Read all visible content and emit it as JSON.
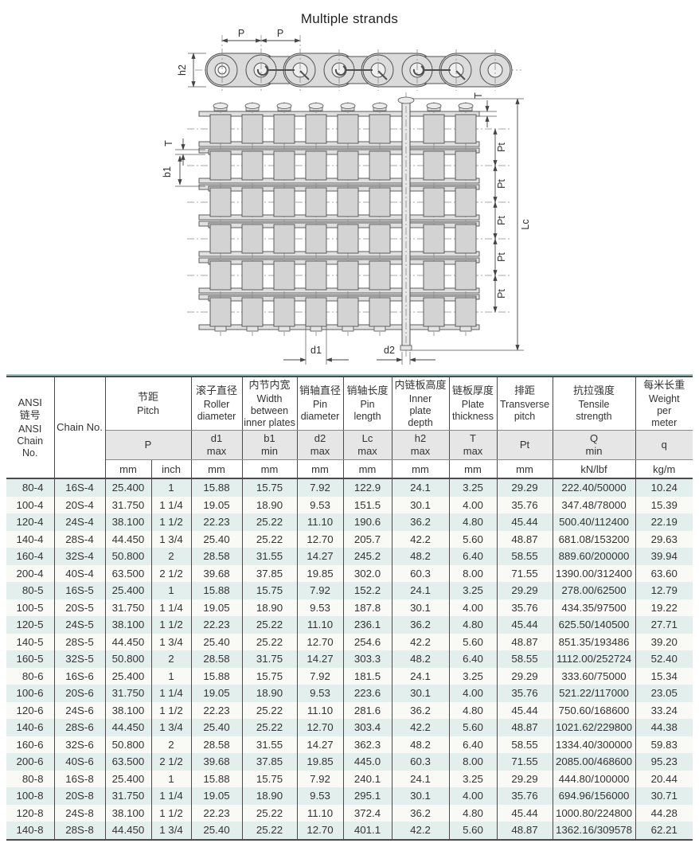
{
  "page": {
    "title": "Multiple strands"
  },
  "colors": {
    "stripe": "#e3efec",
    "accent_line": "#95c4bf"
  },
  "diagram": {
    "labels": {
      "p": "P",
      "h2": "h2",
      "t": "T",
      "b1": "b1",
      "pt": "Pt",
      "lc": "Lc",
      "d1": "d1",
      "d2": "d2"
    }
  },
  "table": {
    "header": {
      "ansi_zh": "ANSI\n链号",
      "ansi_en": "ANSI\nChain\nNo.",
      "chain_no": "Chain No.",
      "pitch_zh": "节距",
      "pitch_en": "Pitch",
      "pitch_sym": "P",
      "roller_zh": "滚子直径",
      "roller_en": "Roller\ndiameter",
      "roller_sym": "d1\nmax",
      "width_zh": "内节内宽",
      "width_en": "Width\nbetween\ninner plates",
      "width_sym": "b1\nmin",
      "pin_d_zh": "销轴直径",
      "pin_d_en": "Pin\ndiameter",
      "pin_d_sym": "d2\nmax",
      "pin_l_zh": "销轴长度",
      "pin_l_en": "Pin\nlength",
      "pin_l_sym": "Lc\nmax",
      "plate_h_zh": "内链板高度",
      "plate_h_en": "Inner\nplate\ndepth",
      "plate_h_sym": "h2\nmax",
      "plate_t_zh": "链板厚度",
      "plate_t_en": "Plate\nthickness",
      "plate_t_sym": "T\nmax",
      "tp_zh": "排距",
      "tp_en": "Transverse\npitch",
      "tp_sym": "Pt",
      "ts_zh": "抗拉强度",
      "ts_en": "Tensile\nstrength",
      "ts_sym": "Q\nmin",
      "w_zh": "每米长重",
      "w_en": "Weight\nper\nmeter",
      "w_sym": "q",
      "units": {
        "mm": "mm",
        "inch": "inch",
        "kn": "kN/lbf",
        "kg": "kg/m"
      }
    },
    "rows": [
      [
        "80-4",
        "16S-4",
        "25.400",
        "1",
        "15.88",
        "15.75",
        "7.92",
        "122.9",
        "24.1",
        "3.25",
        "29.29",
        "222.40/50000",
        "10.24"
      ],
      [
        "100-4",
        "20S-4",
        "31.750",
        "1 1/4",
        "19.05",
        "18.90",
        "9.53",
        "151.5",
        "30.1",
        "4.00",
        "35.76",
        "347.48/78000",
        "15.39"
      ],
      [
        "120-4",
        "24S-4",
        "38.100",
        "1 1/2",
        "22.23",
        "25.22",
        "11.10",
        "190.6",
        "36.2",
        "4.80",
        "45.44",
        "500.40/112400",
        "22.19"
      ],
      [
        "140-4",
        "28S-4",
        "44.450",
        "1 3/4",
        "25.40",
        "25.22",
        "12.70",
        "205.7",
        "42.2",
        "5.60",
        "48.87",
        "681.08/153200",
        "29.63"
      ],
      [
        "160-4",
        "32S-4",
        "50.800",
        "2",
        "28.58",
        "31.55",
        "14.27",
        "245.2",
        "48.2",
        "6.40",
        "58.55",
        "889.60/200000",
        "39.94"
      ],
      [
        "200-4",
        "40S-4",
        "63.500",
        "2 1/2",
        "39.68",
        "37.85",
        "19.85",
        "302.0",
        "60.3",
        "8.00",
        "71.55",
        "1390.00/312400",
        "63.60"
      ],
      [
        "80-5",
        "16S-5",
        "25.400",
        "1",
        "15.88",
        "15.75",
        "7.92",
        "152.2",
        "24.1",
        "3.25",
        "29.29",
        "278.00/62500",
        "12.79"
      ],
      [
        "100-5",
        "20S-5",
        "31.750",
        "1 1/4",
        "19.05",
        "18.90",
        "9.53",
        "187.8",
        "30.1",
        "4.00",
        "35.76",
        "434.35/97500",
        "19.22"
      ],
      [
        "120-5",
        "24S-5",
        "38.100",
        "1 1/2",
        "22.23",
        "25.22",
        "11.10",
        "236.1",
        "36.2",
        "4.80",
        "45.44",
        "625.50/140500",
        "27.71"
      ],
      [
        "140-5",
        "28S-5",
        "44.450",
        "1 3/4",
        "25.40",
        "25.22",
        "12.70",
        "254.6",
        "42.2",
        "5.60",
        "48.87",
        "851.35/193486",
        "39.20"
      ],
      [
        "160-5",
        "32S-5",
        "50.800",
        "2",
        "28.58",
        "31.75",
        "14.27",
        "303.3",
        "48.2",
        "6.40",
        "58.55",
        "1112.00/252724",
        "52.40"
      ],
      [
        "80-6",
        "16S-6",
        "25.400",
        "1",
        "15.88",
        "15.75",
        "7.92",
        "181.5",
        "24.1",
        "3.25",
        "29.29",
        "333.60/75000",
        "15.34"
      ],
      [
        "100-6",
        "20S-6",
        "31.750",
        "1 1/4",
        "19.05",
        "18.90",
        "9.53",
        "223.6",
        "30.1",
        "4.00",
        "35.76",
        "521.22/117000",
        "23.05"
      ],
      [
        "120-6",
        "24S-6",
        "38.100",
        "1 1/2",
        "22.23",
        "25.22",
        "11.10",
        "281.6",
        "36.2",
        "4.80",
        "45.44",
        "750.60/168600",
        "33.24"
      ],
      [
        "140-6",
        "28S-6",
        "44.450",
        "1 3/4",
        "25.40",
        "25.22",
        "12.70",
        "303.4",
        "42.2",
        "5.60",
        "48.87",
        "1021.62/229800",
        "44.38"
      ],
      [
        "160-6",
        "32S-6",
        "50.800",
        "2",
        "28.58",
        "31.55",
        "14.27",
        "362.3",
        "48.2",
        "6.40",
        "58.55",
        "1334.40/300000",
        "59.83"
      ],
      [
        "200-6",
        "40S-6",
        "63.500",
        "2 1/2",
        "39.68",
        "37.85",
        "19.85",
        "445.0",
        "60.3",
        "8.00",
        "71.55",
        "2085.00/468600",
        "95.23"
      ],
      [
        "80-8",
        "16S-8",
        "25.400",
        "1",
        "15.88",
        "15.75",
        "7.92",
        "240.1",
        "24.1",
        "3.25",
        "29.29",
        "444.80/100000",
        "20.44"
      ],
      [
        "100-8",
        "20S-8",
        "31.750",
        "1 1/4",
        "19.05",
        "18.90",
        "9.53",
        "295.1",
        "30.1",
        "4.00",
        "35.76",
        "694.96/156000",
        "30.71"
      ],
      [
        "120-8",
        "24S-8",
        "38.100",
        "1 1/2",
        "22.23",
        "25.22",
        "11.10",
        "372.4",
        "36.2",
        "4.80",
        "45.44",
        "1000.80/224800",
        "44.28"
      ],
      [
        "140-8",
        "28S-8",
        "44.450",
        "1 3/4",
        "25.40",
        "25.22",
        "12.70",
        "401.1",
        "42.2",
        "5.60",
        "48.87",
        "1362.16/309578",
        "62.21"
      ]
    ]
  }
}
